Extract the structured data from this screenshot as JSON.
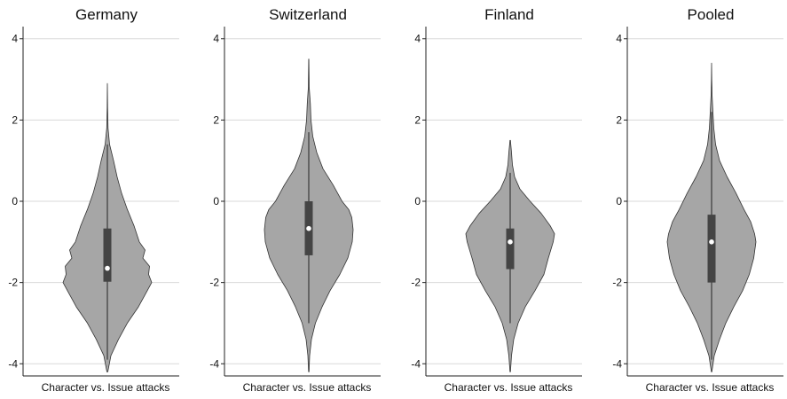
{
  "chart_data": [
    {
      "type": "violin",
      "title": "Germany",
      "xlabel": "Character vs. Issue attacks",
      "ylabel": "",
      "ylim": [
        -4.3,
        4.3
      ],
      "yticks": [
        "4",
        "2",
        "0",
        "-2",
        "-4"
      ],
      "grid": true,
      "median": -1.65,
      "q1": -1.98,
      "q3": -0.67,
      "whisker_low": -3.9,
      "whisker_high": 1.4,
      "density": [
        [
          -4.2,
          0.01
        ],
        [
          -3.8,
          0.08
        ],
        [
          -3.4,
          0.25
        ],
        [
          -3.0,
          0.45
        ],
        [
          -2.6,
          0.7
        ],
        [
          -2.2,
          0.9
        ],
        [
          -2.0,
          1.0
        ],
        [
          -1.8,
          0.93
        ],
        [
          -1.6,
          0.95
        ],
        [
          -1.4,
          0.8
        ],
        [
          -1.2,
          0.85
        ],
        [
          -1.0,
          0.72
        ],
        [
          -0.6,
          0.6
        ],
        [
          -0.2,
          0.45
        ],
        [
          0.2,
          0.32
        ],
        [
          0.6,
          0.22
        ],
        [
          1.0,
          0.14
        ],
        [
          1.4,
          0.05
        ],
        [
          1.8,
          0.015
        ],
        [
          2.3,
          0.005
        ],
        [
          2.9,
          0.001
        ]
      ],
      "violin_color": "#a6a6a6",
      "box_color": "#444444"
    },
    {
      "type": "violin",
      "title": "Switzerland",
      "xlabel": "Character vs. Issue attacks",
      "ylabel": "",
      "ylim": [
        -4.3,
        4.3
      ],
      "yticks": [
        "4",
        "2",
        "0",
        "-2",
        "-4"
      ],
      "grid": true,
      "median": -0.67,
      "q1": -1.33,
      "q3": 0.0,
      "whisker_low": -3.0,
      "whisker_high": 1.7,
      "density": [
        [
          -4.2,
          0.005
        ],
        [
          -3.8,
          0.02
        ],
        [
          -3.4,
          0.06
        ],
        [
          -3.0,
          0.15
        ],
        [
          -2.6,
          0.3
        ],
        [
          -2.2,
          0.48
        ],
        [
          -1.8,
          0.7
        ],
        [
          -1.4,
          0.88
        ],
        [
          -1.0,
          0.98
        ],
        [
          -0.7,
          1.0
        ],
        [
          -0.4,
          0.97
        ],
        [
          -0.2,
          0.9
        ],
        [
          0.0,
          0.75
        ],
        [
          0.4,
          0.55
        ],
        [
          0.8,
          0.32
        ],
        [
          1.2,
          0.18
        ],
        [
          1.6,
          0.09
        ],
        [
          2.0,
          0.05
        ],
        [
          2.4,
          0.035
        ],
        [
          2.8,
          0.01
        ],
        [
          3.5,
          0.002
        ]
      ],
      "violin_color": "#a6a6a6",
      "box_color": "#444444"
    },
    {
      "type": "violin",
      "title": "Finland",
      "xlabel": "Character vs. Issue attacks",
      "ylabel": "",
      "ylim": [
        -4.3,
        4.3
      ],
      "yticks": [
        "4",
        "2",
        "0",
        "-2",
        "-4"
      ],
      "grid": true,
      "median": -1.0,
      "q1": -1.67,
      "q3": -0.67,
      "whisker_low": -3.0,
      "whisker_high": 0.7,
      "density": [
        [
          -4.2,
          0.005
        ],
        [
          -3.8,
          0.03
        ],
        [
          -3.4,
          0.08
        ],
        [
          -3.0,
          0.18
        ],
        [
          -2.6,
          0.34
        ],
        [
          -2.2,
          0.56
        ],
        [
          -1.8,
          0.76
        ],
        [
          -1.4,
          0.86
        ],
        [
          -1.0,
          0.97
        ],
        [
          -0.8,
          1.0
        ],
        [
          -0.6,
          0.9
        ],
        [
          -0.3,
          0.7
        ],
        [
          0.0,
          0.45
        ],
        [
          0.3,
          0.22
        ],
        [
          0.6,
          0.1
        ],
        [
          0.9,
          0.05
        ],
        [
          1.2,
          0.03
        ],
        [
          1.5,
          0.005
        ]
      ],
      "violin_color": "#a6a6a6",
      "box_color": "#444444"
    },
    {
      "type": "violin",
      "title": "Pooled",
      "xlabel": "Character vs. Issue attacks",
      "ylabel": "",
      "ylim": [
        -4.3,
        4.3
      ],
      "yticks": [
        "4",
        "2",
        "0",
        "-2",
        "-4"
      ],
      "grid": true,
      "median": -1.0,
      "q1": -2.0,
      "q3": -0.33,
      "whisker_low": -3.9,
      "whisker_high": 2.2,
      "density": [
        [
          -4.2,
          0.005
        ],
        [
          -3.8,
          0.06
        ],
        [
          -3.4,
          0.18
        ],
        [
          -3.0,
          0.32
        ],
        [
          -2.6,
          0.5
        ],
        [
          -2.2,
          0.7
        ],
        [
          -1.8,
          0.85
        ],
        [
          -1.4,
          0.95
        ],
        [
          -1.0,
          1.0
        ],
        [
          -0.8,
          0.97
        ],
        [
          -0.5,
          0.88
        ],
        [
          -0.2,
          0.73
        ],
        [
          0.2,
          0.55
        ],
        [
          0.6,
          0.35
        ],
        [
          1.0,
          0.18
        ],
        [
          1.4,
          0.09
        ],
        [
          1.8,
          0.05
        ],
        [
          2.2,
          0.03
        ],
        [
          2.6,
          0.012
        ],
        [
          3.0,
          0.004
        ],
        [
          3.4,
          0.001
        ]
      ],
      "violin_color": "#a6a6a6",
      "box_color": "#444444"
    }
  ]
}
